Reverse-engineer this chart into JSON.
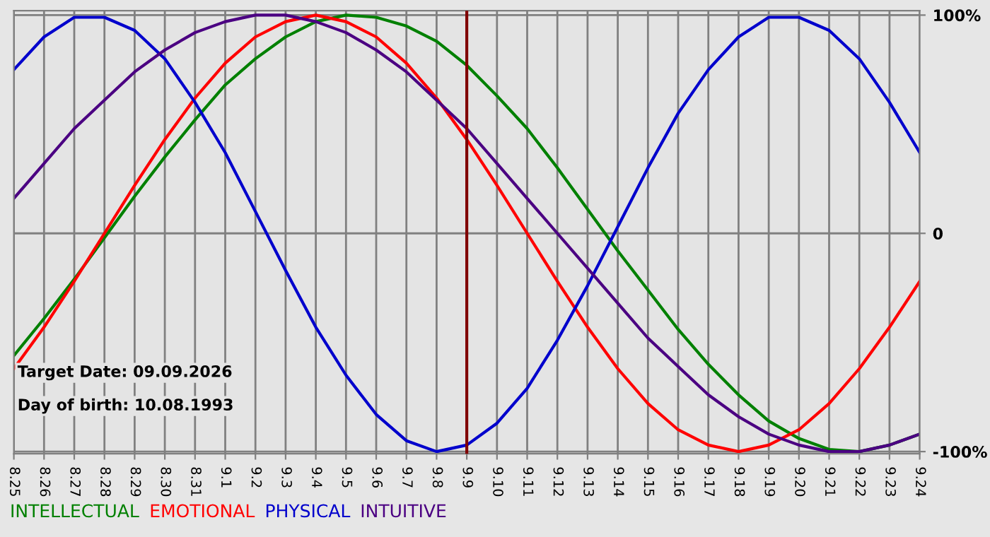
{
  "chart_data": {
    "type": "line",
    "categories": [
      "8.25",
      "8.26",
      "8.27",
      "8.28",
      "8.29",
      "8.30",
      "8.31",
      "9.1",
      "9.2",
      "9.3",
      "9.4",
      "9.5",
      "9.6",
      "9.7",
      "9.8",
      "9.9",
      "9.10",
      "9.11",
      "9.12",
      "9.13",
      "9.14",
      "9.15",
      "9.16",
      "9.17",
      "9.18",
      "9.19",
      "9.20",
      "9.21",
      "9.22",
      "9.23",
      "9.24"
    ],
    "series": [
      {
        "name": "INTELLECTUAL",
        "color": "#008000",
        "values": [
          -56,
          -39,
          -21,
          -2,
          17,
          35,
          52,
          68,
          80,
          90,
          97,
          100,
          99,
          95,
          88,
          77,
          63,
          48,
          30,
          11,
          -8,
          -26,
          -44,
          -60,
          -74,
          -86,
          -94,
          -99,
          -100,
          -97,
          -92
        ]
      },
      {
        "name": "EMOTIONAL",
        "color": "#ff0000",
        "values": [
          -62,
          -43,
          -22,
          0,
          22,
          43,
          62,
          78,
          90,
          97,
          100,
          97,
          90,
          78,
          62,
          43,
          22,
          0,
          -22,
          -43,
          -62,
          -78,
          -90,
          -97,
          -100,
          -97,
          -90,
          -78,
          -62,
          -43,
          -22
        ]
      },
      {
        "name": "PHYSICAL",
        "color": "#0000cc",
        "values": [
          75,
          90,
          99,
          99,
          93,
          80,
          60,
          37,
          10,
          -17,
          -43,
          -65,
          -83,
          -95,
          -100,
          -97,
          -87,
          -71,
          -49,
          -24,
          3,
          30,
          55,
          75,
          90,
          99,
          99,
          93,
          80,
          60,
          37
        ]
      },
      {
        "name": "INTUITIVE",
        "color": "#4b0082",
        "values": [
          16,
          32,
          48,
          61,
          74,
          84,
          92,
          97,
          100,
          100,
          97,
          92,
          84,
          74,
          61,
          48,
          32,
          16,
          0,
          -16,
          -32,
          -48,
          -61,
          -74,
          -84,
          -92,
          -97,
          -100,
          -100,
          -97,
          -92
        ]
      }
    ],
    "ylim": [
      -101,
      102
    ],
    "yticks": [
      {
        "value": 100,
        "label": "100%"
      },
      0,
      {
        "value": -100,
        "label": "-100%"
      }
    ],
    "ref_lines": [
      {
        "axis": "x",
        "value": "9.9",
        "color": "#800000"
      }
    ],
    "annotations": [
      "Target Date: 09.09.2026",
      "Day of birth: 10.08.1993"
    ],
    "grid": true,
    "legend": "bottom"
  }
}
